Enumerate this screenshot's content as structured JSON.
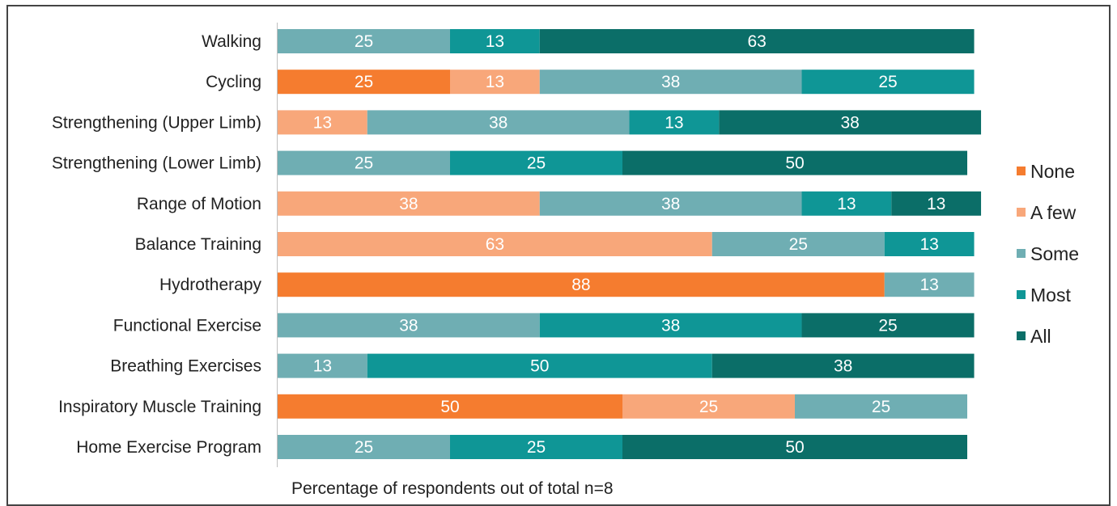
{
  "chart_data": {
    "type": "bar",
    "orientation": "horizontal",
    "stacked": true,
    "title": "",
    "xlabel": "Percentage of respondents out of total n=8",
    "ylabel": "",
    "xlim": [
      0,
      100
    ],
    "grid": false,
    "legend_position": "right",
    "categories": [
      "Walking",
      "Cycling",
      "Strengthening (Upper Limb)",
      "Strengthening (Lower Limb)",
      "Range of Motion",
      "Balance Training",
      "Hydrotherapy",
      "Functional Exercise",
      "Breathing Exercises",
      "Inspiratory Muscle Training",
      "Home Exercise Program"
    ],
    "series": [
      {
        "name": "None",
        "color": "#F57C2F",
        "values": [
          0,
          25,
          0,
          0,
          0,
          0,
          88,
          0,
          0,
          50,
          0
        ]
      },
      {
        "name": "A few",
        "color": "#F8A77A",
        "values": [
          0,
          13,
          13,
          0,
          38,
          63,
          0,
          0,
          0,
          25,
          0
        ]
      },
      {
        "name": "Some",
        "color": "#6FAEB3",
        "values": [
          25,
          38,
          38,
          25,
          38,
          25,
          13,
          38,
          13,
          25,
          25
        ]
      },
      {
        "name": "Most",
        "color": "#0F9696",
        "values": [
          13,
          25,
          13,
          25,
          13,
          13,
          0,
          38,
          50,
          0,
          25
        ]
      },
      {
        "name": "All",
        "color": "#0B6E68",
        "values": [
          63,
          0,
          38,
          50,
          13,
          0,
          0,
          25,
          38,
          0,
          50
        ]
      }
    ]
  }
}
